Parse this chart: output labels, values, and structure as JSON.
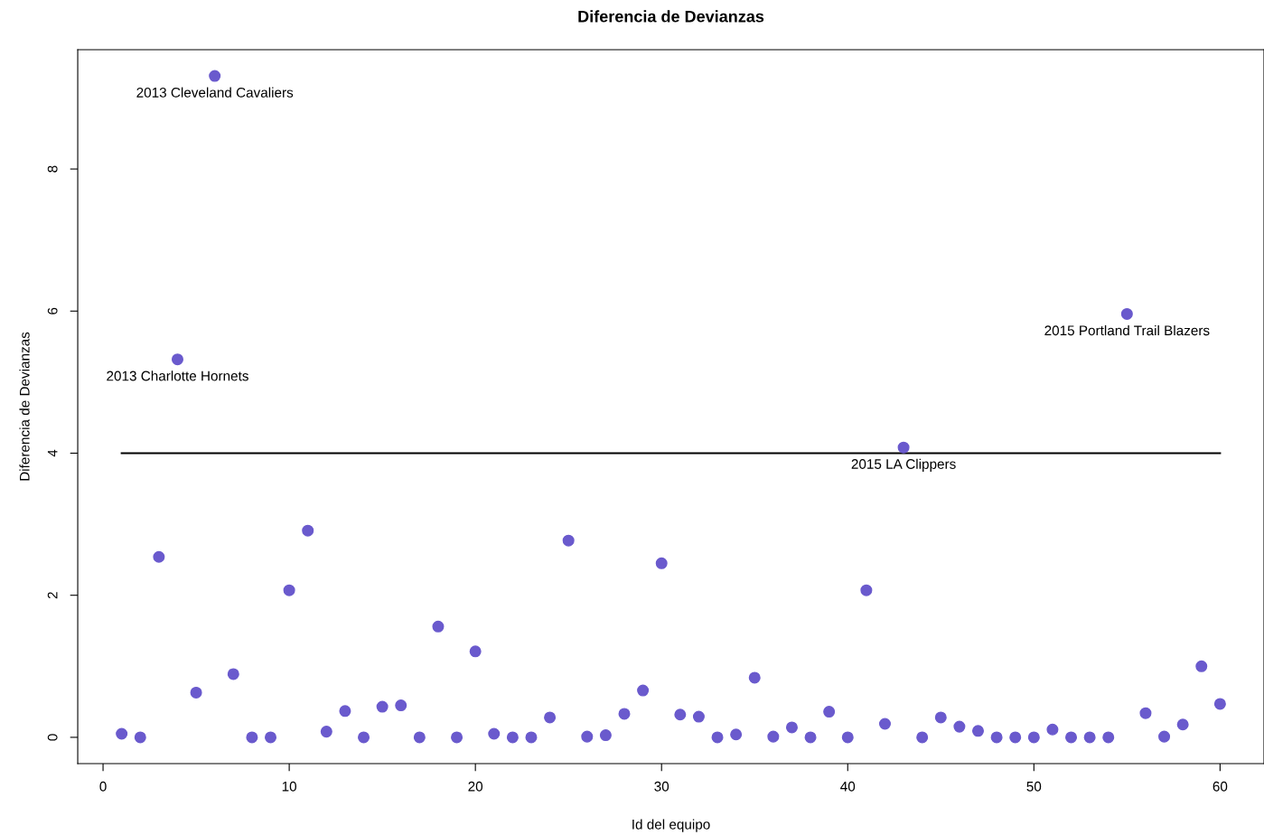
{
  "chart_data": {
    "type": "scatter",
    "title": "Diferencia de Devianzas",
    "xlabel": "Id del equipo",
    "ylabel": "Diferencia de Devianzas",
    "x": [
      1,
      2,
      3,
      4,
      5,
      6,
      7,
      8,
      9,
      10,
      11,
      12,
      13,
      14,
      15,
      16,
      17,
      18,
      19,
      20,
      21,
      22,
      23,
      24,
      25,
      26,
      27,
      28,
      29,
      30,
      31,
      32,
      33,
      34,
      35,
      36,
      37,
      38,
      39,
      40,
      41,
      42,
      43,
      44,
      45,
      46,
      47,
      48,
      49,
      50,
      51,
      52,
      53,
      54,
      55,
      56,
      57,
      58,
      59,
      60
    ],
    "series": [
      {
        "color": "#6a5acd",
        "values": [
          0.05,
          0,
          2.54,
          5.32,
          0.63,
          9.31,
          0.89,
          0,
          0,
          2.07,
          2.91,
          0.08,
          0.37,
          0,
          0.43,
          0.45,
          0,
          1.56,
          0,
          1.21,
          0.05,
          0,
          0,
          0.28,
          2.77,
          0.01,
          0.03,
          0.33,
          0.66,
          2.45,
          0.32,
          0.29,
          0,
          0.04,
          0.84,
          0.01,
          0.14,
          0,
          0.36,
          0,
          2.07,
          0.19,
          4.08,
          0,
          0.28,
          0.15,
          0.09,
          0,
          0,
          0,
          0.11,
          0,
          0,
          0,
          5.96,
          0.34,
          0.01,
          0.18,
          1.0,
          0.47
        ]
      }
    ],
    "xlim": [
      -1.36,
      62.36
    ],
    "ylim": [
      -0.37,
      9.68
    ],
    "xticks": [
      0,
      10,
      20,
      30,
      40,
      50,
      60
    ],
    "yticks": [
      0,
      2,
      4,
      6,
      8
    ],
    "marker": "circle",
    "grid": false,
    "legend": false,
    "ref_lines": [
      {
        "axis": "y",
        "value": 4,
        "color": "#000000",
        "line_style": "solid"
      }
    ],
    "annotations": [
      {
        "text": "2013 Cleveland Cavaliers",
        "x": 6,
        "y": 9.31
      },
      {
        "text": "2013 Charlotte Hornets",
        "x": 4,
        "y": 5.32
      },
      {
        "text": "2015 Portland Trail Blazers",
        "x": 55,
        "y": 5.96
      },
      {
        "text": "2015 LA Clippers",
        "x": 43,
        "y": 4.08
      }
    ]
  }
}
